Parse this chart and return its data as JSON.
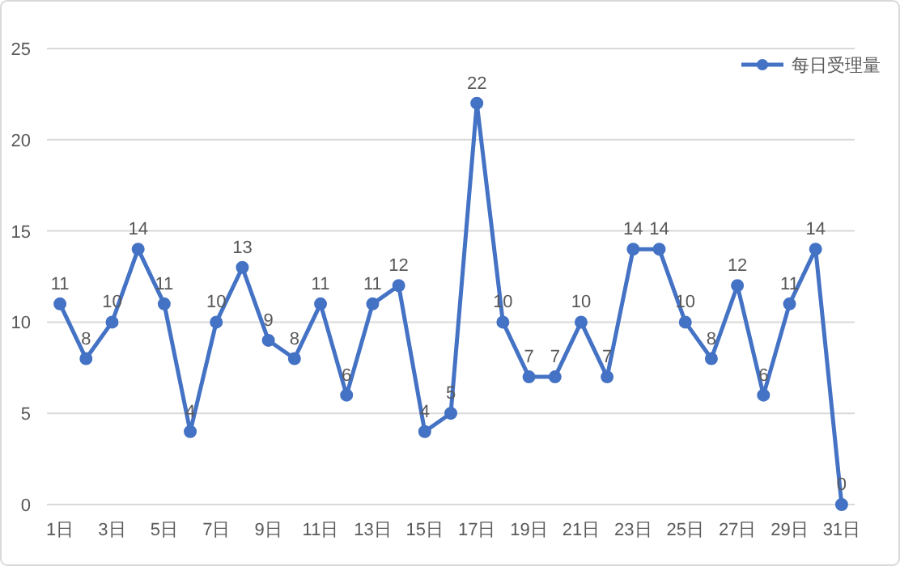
{
  "chart_data": {
    "type": "line",
    "categories": [
      "1日",
      null,
      "3日",
      null,
      "5日",
      null,
      "7日",
      null,
      "9日",
      null,
      "11日",
      null,
      "13日",
      null,
      "15日",
      null,
      "17日",
      null,
      "19日",
      null,
      "21日",
      null,
      "23日",
      null,
      "25日",
      null,
      "27日",
      null,
      "29日",
      null,
      "31日"
    ],
    "series": [
      {
        "name": "每日受理量",
        "color": "#4472c4",
        "values": [
          11,
          8,
          10,
          14,
          11,
          4,
          10,
          13,
          9,
          8,
          11,
          6,
          11,
          12,
          4,
          5,
          22,
          10,
          7,
          7,
          10,
          7,
          14,
          14,
          10,
          8,
          12,
          6,
          11,
          14,
          0
        ]
      }
    ],
    "ylim": [
      0,
      25
    ],
    "yticks": [
      0,
      5,
      10,
      15,
      20,
      25
    ],
    "grid": "y",
    "legend": "top right",
    "marker": "circle",
    "line_style": "solid",
    "data_labels": true
  }
}
